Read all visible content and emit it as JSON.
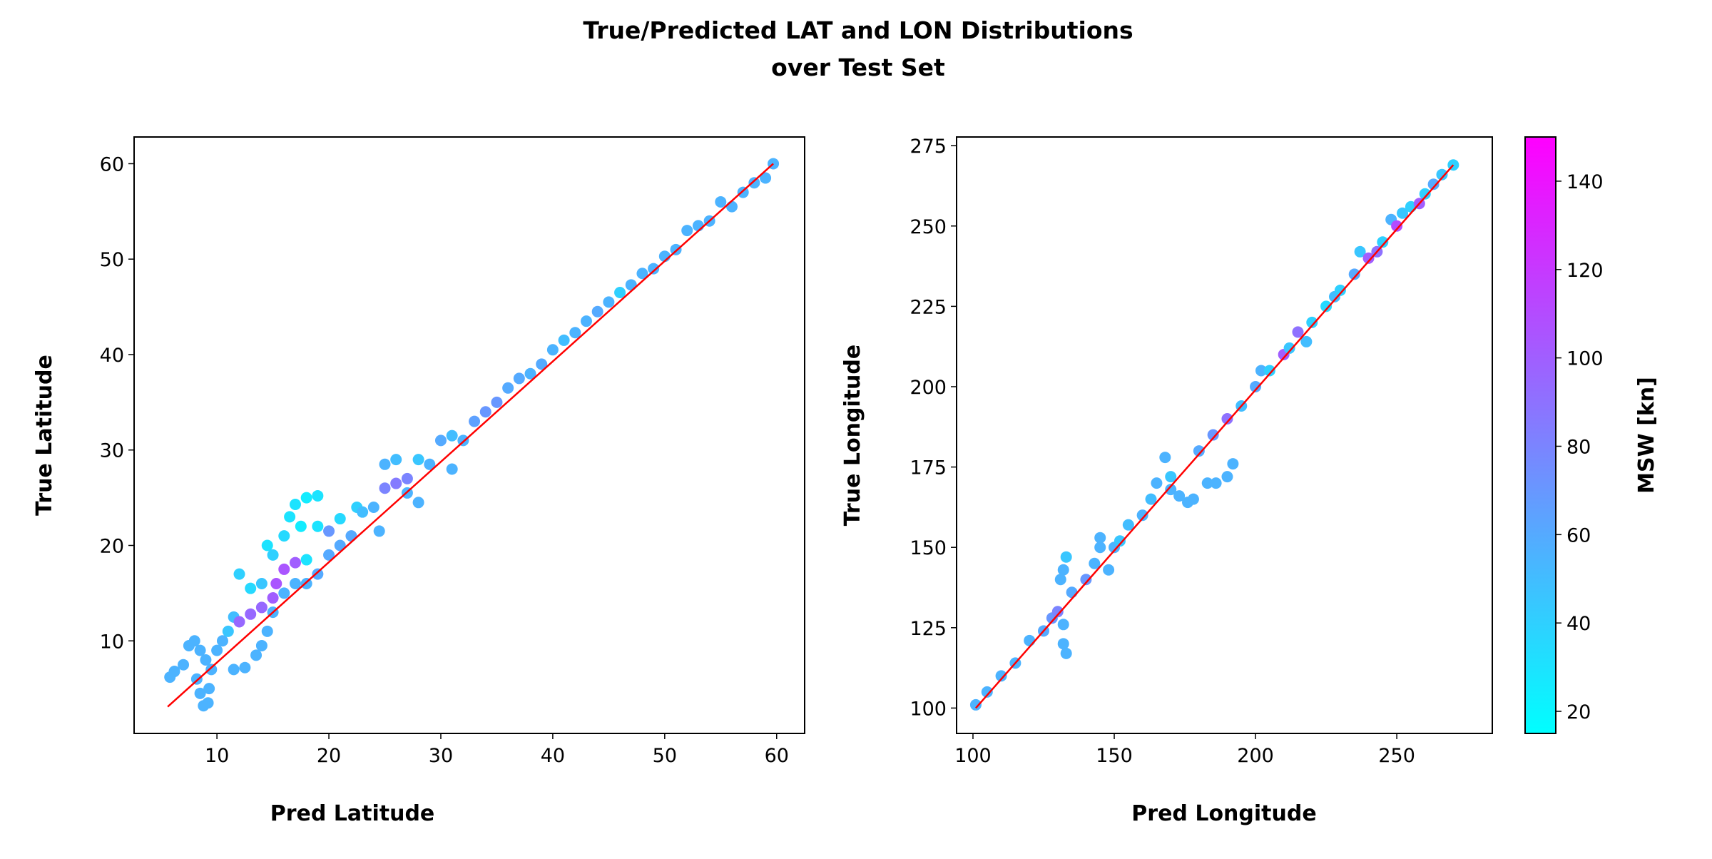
{
  "title_lines": [
    "True/Predicted LAT and LON Distributions",
    "over Test Set"
  ],
  "chart_data": [
    {
      "type": "scatter",
      "xlabel": "Pred Latitude",
      "ylabel": "True Latitude",
      "xlim": [
        2.6,
        62.5
      ],
      "ylim": [
        0.3,
        62.8
      ],
      "xticks": [
        10,
        20,
        30,
        40,
        50,
        60
      ],
      "yticks": [
        10,
        20,
        30,
        40,
        50,
        60
      ],
      "grid": false,
      "reference_line": {
        "color": "#ff0000",
        "points": [
          [
            5.6,
            3.1
          ],
          [
            59.7,
            60.0
          ]
        ]
      },
      "color_by": "MSW [kn]",
      "points": [
        [
          5.8,
          6.2,
          55
        ],
        [
          6.2,
          6.8,
          55
        ],
        [
          7,
          7.5,
          55
        ],
        [
          7.5,
          9.5,
          55
        ],
        [
          8,
          10,
          55
        ],
        [
          8.5,
          9,
          55
        ],
        [
          9,
          8,
          55
        ],
        [
          8.2,
          6,
          55
        ],
        [
          8.5,
          4.5,
          55
        ],
        [
          8.8,
          3.2,
          55
        ],
        [
          9.2,
          3.5,
          55
        ],
        [
          9.3,
          5,
          55
        ],
        [
          9.5,
          7,
          55
        ],
        [
          10,
          9,
          55
        ],
        [
          10.5,
          10,
          55
        ],
        [
          11,
          11,
          45
        ],
        [
          11.5,
          12.5,
          50
        ],
        [
          11.5,
          7,
          55
        ],
        [
          12.5,
          7.2,
          55
        ],
        [
          13.5,
          8.5,
          55
        ],
        [
          14,
          9.5,
          55
        ],
        [
          14.5,
          11,
          55
        ],
        [
          12,
          12,
          95
        ],
        [
          13,
          12.8,
          95
        ],
        [
          14,
          13.5,
          95
        ],
        [
          15,
          14.5,
          100
        ],
        [
          15.3,
          16,
          105
        ],
        [
          16,
          17.5,
          105
        ],
        [
          17,
          18.2,
          100
        ],
        [
          12,
          17,
          40
        ],
        [
          13,
          15.5,
          35
        ],
        [
          14,
          16,
          45
        ],
        [
          14.5,
          20,
          30
        ],
        [
          15,
          19,
          40
        ],
        [
          16,
          21,
          35
        ],
        [
          16.5,
          23,
          30
        ],
        [
          17,
          24.3,
          30
        ],
        [
          17.5,
          22,
          25
        ],
        [
          18,
          25,
          25
        ],
        [
          19,
          25.2,
          30
        ],
        [
          19,
          22,
          30
        ],
        [
          18,
          18.5,
          30
        ],
        [
          15,
          13,
          55
        ],
        [
          16,
          15,
          55
        ],
        [
          17,
          16,
          55
        ],
        [
          18,
          16,
          55
        ],
        [
          19,
          17,
          60
        ],
        [
          20,
          19,
          60
        ],
        [
          21,
          20,
          60
        ],
        [
          20,
          21.5,
          70
        ],
        [
          21,
          22.8,
          35
        ],
        [
          22,
          21,
          60
        ],
        [
          22.5,
          24,
          40
        ],
        [
          23,
          23.5,
          50
        ],
        [
          24,
          24,
          55
        ],
        [
          24.5,
          21.5,
          55
        ],
        [
          25,
          28.5,
          55
        ],
        [
          26,
          29,
          50
        ],
        [
          25,
          26,
          80
        ],
        [
          26,
          26.5,
          85
        ],
        [
          27,
          27,
          80
        ],
        [
          27,
          25.5,
          55
        ],
        [
          28,
          24.5,
          55
        ],
        [
          28,
          29,
          45
        ],
        [
          29,
          28.5,
          55
        ],
        [
          30,
          31,
          60
        ],
        [
          31,
          31.5,
          50
        ],
        [
          31,
          28,
          55
        ],
        [
          32,
          31,
          55
        ],
        [
          33,
          33,
          65
        ],
        [
          34,
          34,
          70
        ],
        [
          35,
          35,
          70
        ],
        [
          36,
          36.5,
          60
        ],
        [
          37,
          37.5,
          60
        ],
        [
          38,
          38,
          55
        ],
        [
          39,
          39,
          60
        ],
        [
          40,
          40.5,
          55
        ],
        [
          41,
          41.5,
          50
        ],
        [
          42,
          42.3,
          55
        ],
        [
          43,
          43.5,
          55
        ],
        [
          44,
          44.5,
          60
        ],
        [
          45,
          45.5,
          55
        ],
        [
          46,
          46.5,
          40
        ],
        [
          47,
          47.3,
          55
        ],
        [
          48,
          48.5,
          55
        ],
        [
          49,
          49,
          55
        ],
        [
          50,
          50.3,
          55
        ],
        [
          51,
          51,
          55
        ],
        [
          52,
          53,
          55
        ],
        [
          53,
          53.5,
          55
        ],
        [
          54,
          54,
          55
        ],
        [
          55,
          56,
          55
        ],
        [
          56,
          55.5,
          55
        ],
        [
          57,
          57,
          55
        ],
        [
          58,
          58,
          55
        ],
        [
          59,
          58.5,
          55
        ],
        [
          59.7,
          60,
          55
        ]
      ]
    },
    {
      "type": "scatter",
      "xlabel": "Pred Longitude",
      "ylabel": "True Longitude",
      "xlim": [
        94.2,
        283.8
      ],
      "ylim": [
        92.1,
        277.7
      ],
      "xticks": [
        100,
        150,
        200,
        250
      ],
      "yticks": [
        100,
        125,
        150,
        175,
        200,
        225,
        250,
        275
      ],
      "grid": false,
      "reference_line": {
        "color": "#ff0000",
        "points": [
          [
            101,
            100
          ],
          [
            270,
            269
          ]
        ]
      },
      "color_by": "MSW [kn]",
      "points": [
        [
          101,
          101,
          55
        ],
        [
          105,
          105,
          55
        ],
        [
          110,
          110,
          55
        ],
        [
          115,
          114,
          55
        ],
        [
          120,
          121,
          55
        ],
        [
          125,
          124,
          60
        ],
        [
          128,
          128,
          70
        ],
        [
          130,
          130,
          80
        ],
        [
          131,
          140,
          55
        ],
        [
          132,
          143,
          55
        ],
        [
          133,
          147,
          45
        ],
        [
          132,
          120,
          55
        ],
        [
          133,
          117,
          55
        ],
        [
          132,
          126,
          55
        ],
        [
          135,
          136,
          60
        ],
        [
          140,
          140,
          70
        ],
        [
          143,
          145,
          55
        ],
        [
          145,
          150,
          55
        ],
        [
          145,
          153,
          55
        ],
        [
          148,
          143,
          55
        ],
        [
          150,
          150,
          55
        ],
        [
          152,
          152,
          45
        ],
        [
          155,
          157,
          50
        ],
        [
          160,
          160,
          55
        ],
        [
          163,
          165,
          50
        ],
        [
          165,
          170,
          55
        ],
        [
          168,
          178,
          55
        ],
        [
          170,
          172,
          45
        ],
        [
          170,
          168,
          55
        ],
        [
          173,
          166,
          55
        ],
        [
          176,
          164,
          55
        ],
        [
          178,
          165,
          55
        ],
        [
          180,
          180,
          60
        ],
        [
          183,
          170,
          55
        ],
        [
          186,
          170,
          55
        ],
        [
          190,
          172,
          55
        ],
        [
          192,
          176,
          55
        ],
        [
          185,
          185,
          70
        ],
        [
          190,
          190,
          90
        ],
        [
          195,
          194,
          50
        ],
        [
          200,
          200,
          60
        ],
        [
          202,
          205,
          55
        ],
        [
          205,
          205,
          40
        ],
        [
          210,
          210,
          100
        ],
        [
          212,
          212,
          45
        ],
        [
          215,
          217,
          90
        ],
        [
          218,
          214,
          50
        ],
        [
          220,
          220,
          40
        ],
        [
          225,
          225,
          35
        ],
        [
          228,
          228,
          50
        ],
        [
          230,
          230,
          40
        ],
        [
          235,
          235,
          60
        ],
        [
          237,
          242,
          45
        ],
        [
          240,
          240,
          100
        ],
        [
          243,
          242,
          90
        ],
        [
          245,
          245,
          40
        ],
        [
          248,
          252,
          55
        ],
        [
          250,
          250,
          110
        ],
        [
          252,
          254,
          45
        ],
        [
          255,
          256,
          40
        ],
        [
          258,
          257,
          100
        ],
        [
          260,
          260,
          40
        ],
        [
          263,
          263,
          60
        ],
        [
          266,
          266,
          45
        ],
        [
          270,
          269,
          40
        ]
      ]
    }
  ],
  "colorbar": {
    "label": "MSW [kn]",
    "colormap": "cool",
    "range": [
      15,
      150
    ],
    "ticks": [
      20,
      40,
      60,
      80,
      100,
      120,
      140
    ],
    "low_color": "#00ffff",
    "high_color": "#ff00ff"
  }
}
